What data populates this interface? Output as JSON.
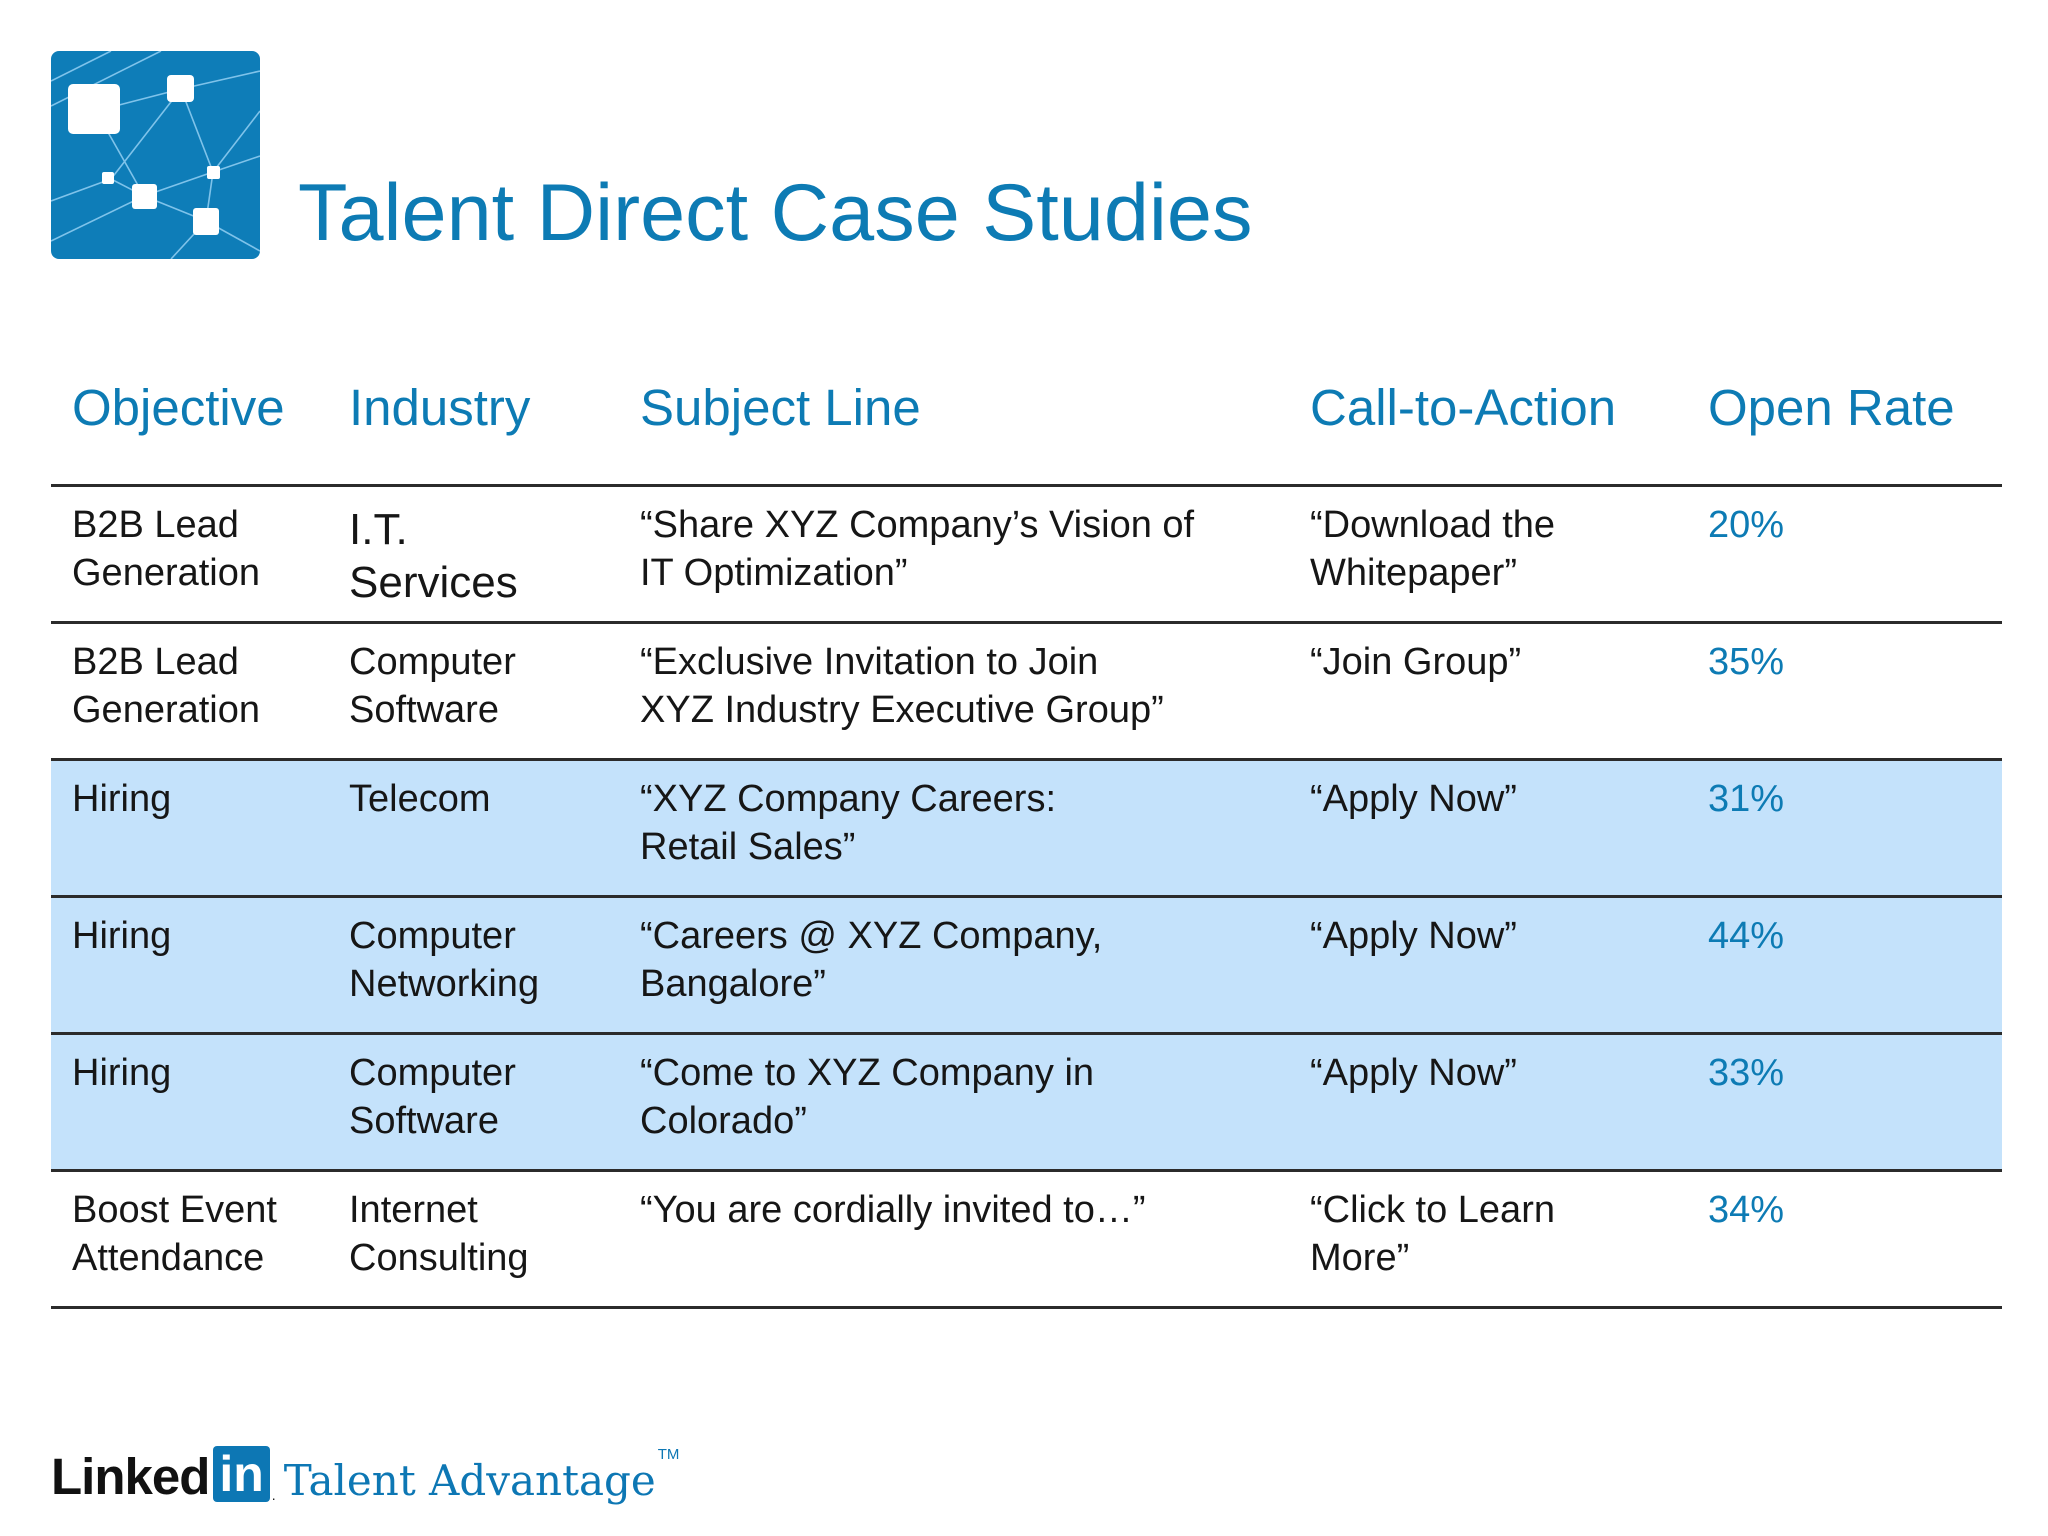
{
  "title": "Talent Direct Case Studies",
  "colors": {
    "accent": "#0d7bb4",
    "row_highlight": "#c4e2fb",
    "rule": "#2b2b2b"
  },
  "table": {
    "headers": {
      "objective": "Objective",
      "industry": "Industry",
      "subject_line": "Subject Line",
      "call_to_action": "Call-to-Action",
      "open_rate": "Open Rate"
    },
    "rows": [
      {
        "objective": "B2B Lead\nGeneration",
        "industry": "I.T.\nServices",
        "subject_line": "“Share XYZ Company’s Vision of\nIT Optimization”",
        "call_to_action": "“Download the\nWhitepaper”",
        "open_rate": "20%",
        "highlighted": false
      },
      {
        "objective": "B2B Lead\nGeneration",
        "industry": "Computer\nSoftware",
        "subject_line": "“Exclusive Invitation to Join\nXYZ Industry Executive Group”",
        "call_to_action": "“Join Group”",
        "open_rate": "35%",
        "highlighted": false
      },
      {
        "objective": "Hiring",
        "industry": "Telecom",
        "subject_line": "“XYZ Company Careers:\nRetail Sales”",
        "call_to_action": "“Apply Now”",
        "open_rate": "31%",
        "highlighted": true
      },
      {
        "objective": "Hiring",
        "industry": "Computer\nNetworking",
        "subject_line": "“Careers @ XYZ Company,\nBangalore”",
        "call_to_action": "“Apply Now”",
        "open_rate": "44%",
        "highlighted": true
      },
      {
        "objective": "Hiring",
        "industry": "Computer\nSoftware",
        "subject_line": "“Come to XYZ Company in\nColorado”",
        "call_to_action": "“Apply Now”",
        "open_rate": "33%",
        "highlighted": true
      },
      {
        "objective": "Boost Event\nAttendance",
        "industry": "Internet\nConsulting",
        "subject_line": "“You are cordially invited to…”",
        "call_to_action": "“Click to Learn\nMore”",
        "open_rate": "34%",
        "highlighted": false
      }
    ]
  },
  "footer": {
    "brand_linked": "Linked",
    "brand_in": "in",
    "brand_dot": ".",
    "product": "Talent Advantage",
    "trademark": "TM"
  },
  "icons": {
    "top_logo": "network-nodes-icon"
  }
}
